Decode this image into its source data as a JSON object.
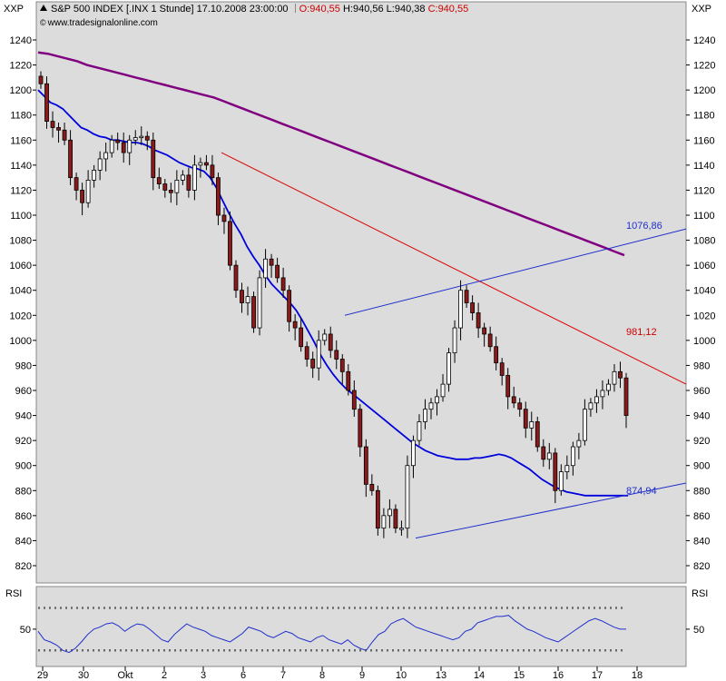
{
  "header": {
    "symbol": "S&P 500 INDEX [.INX  1 Stunde]",
    "datetime": "17.10.2008 23:00:00",
    "ohlc_open": "O:940,55",
    "ohlc_high": "H:940,56",
    "ohlc_low": "L:940,38",
    "ohlc_close": "C:940,55",
    "website": "www.tradesignalonline.com",
    "copyright_symbol": "©"
  },
  "axes": {
    "left_label": "XXP",
    "right_label": "XXP",
    "rsi_label_left": "RSI",
    "rsi_label_right": "RSI"
  },
  "annotations": {
    "upper_channel": "1076,86",
    "trendline": "981,12",
    "lower_channel": "874,94"
  },
  "colors": {
    "plot_bg": "#dcdcdc",
    "up_candle": "#ffffff",
    "down_candle": "#8b1a1a",
    "ma_fast": "#0000dd",
    "ma_slow": "#800080",
    "trendline": "#dd0000",
    "channel": "#1f2fcc",
    "rsi": "#1f2fcc",
    "annotation_blue": "#1f2fcc",
    "annotation_red": "#cc0000"
  },
  "chart_data": [
    {
      "type": "candlestick",
      "title": "S&P 500 INDEX [.INX  1 Stunde]",
      "ylim": [
        810,
        1250
      ],
      "y_ticks": [
        820,
        840,
        860,
        880,
        900,
        920,
        940,
        960,
        980,
        1000,
        1020,
        1040,
        1060,
        1080,
        1100,
        1120,
        1140,
        1160,
        1180,
        1200,
        1220,
        1240
      ],
      "x_ticks": [
        "29",
        "30",
        "Okt",
        "2",
        "3",
        "6",
        "7",
        "8",
        "9",
        "10",
        "13",
        "14",
        "15",
        "16",
        "17",
        "18"
      ],
      "grid": false,
      "close": [
        1205,
        1175,
        1170,
        1168,
        1160,
        1130,
        1120,
        1110,
        1128,
        1136,
        1145,
        1150,
        1160,
        1158,
        1150,
        1160,
        1162,
        1163,
        1160,
        1130,
        1125,
        1120,
        1118,
        1128,
        1132,
        1120,
        1140,
        1142,
        1140,
        1130,
        1100,
        1095,
        1060,
        1040,
        1030,
        1035,
        1010,
        1050,
        1065,
        1060,
        1050,
        1040,
        1015,
        1010,
        995,
        985,
        978,
        1000,
        1005,
        992,
        985,
        975,
        960,
        945,
        915,
        885,
        880,
        850,
        860,
        865,
        850,
        850,
        900,
        920,
        935,
        945,
        950,
        955,
        965,
        990,
        1010,
        1040,
        1030,
        1022,
        1010,
        1005,
        995,
        982,
        972,
        955,
        950,
        945,
        930,
        935,
        915,
        905,
        910,
        880,
        895,
        900,
        915,
        920,
        945,
        950,
        955,
        960,
        965,
        975,
        970,
        940
      ],
      "ma_fast": [
        1200,
        1195,
        1190,
        1188,
        1185,
        1180,
        1175,
        1170,
        1168,
        1165,
        1163,
        1162,
        1160,
        1160,
        1159,
        1158,
        1158,
        1157,
        1155,
        1152,
        1150,
        1148,
        1145,
        1142,
        1140,
        1138,
        1137,
        1135,
        1130,
        1122,
        1112,
        1102,
        1093,
        1085,
        1075,
        1067,
        1060,
        1052,
        1045,
        1040,
        1035,
        1030,
        1024,
        1016,
        1007,
        998,
        988,
        980,
        973,
        967,
        962,
        958,
        954,
        950,
        946,
        942,
        938,
        934,
        930,
        926,
        922,
        918,
        915,
        912,
        910,
        908,
        907,
        906,
        905,
        905,
        905,
        906,
        906,
        907,
        908,
        909,
        908,
        906,
        903,
        900,
        897,
        893,
        889,
        886,
        883,
        881,
        879,
        878,
        877,
        876,
        876,
        876,
        876,
        876,
        876,
        876,
        876
      ],
      "ma_slow": [
        1230,
        1229,
        1227,
        1225,
        1223,
        1220,
        1218,
        1216,
        1214,
        1212,
        1210,
        1208,
        1206,
        1204,
        1202,
        1200,
        1198,
        1196,
        1194,
        1191,
        1188,
        1185,
        1182,
        1179,
        1176,
        1173,
        1170,
        1167,
        1164,
        1161,
        1158,
        1155,
        1152,
        1149,
        1146,
        1143,
        1140,
        1137,
        1134,
        1131,
        1128,
        1125,
        1122,
        1119,
        1116,
        1113,
        1110,
        1107,
        1104,
        1101,
        1098,
        1095,
        1092,
        1089,
        1086,
        1083,
        1080,
        1077,
        1074,
        1071,
        1068
      ],
      "annotations": [
        {
          "label": "1076,86",
          "series": "channel_upper"
        },
        {
          "label": "981,12",
          "series": "trendline"
        },
        {
          "label": "874,94",
          "series": "channel_lower"
        }
      ]
    },
    {
      "type": "line",
      "title": "RSI",
      "y_ticks": [
        50
      ],
      "levels": [
        70,
        30
      ],
      "values": [
        48,
        40,
        38,
        35,
        30,
        28,
        32,
        38,
        45,
        50,
        52,
        55,
        56,
        53,
        48,
        52,
        55,
        54,
        50,
        45,
        40,
        38,
        45,
        50,
        55,
        52,
        50,
        48,
        44,
        42,
        40,
        38,
        42,
        46,
        52,
        50,
        48,
        44,
        42,
        45,
        48,
        46,
        42,
        40,
        38,
        42,
        44,
        40,
        38,
        36,
        40,
        35,
        32,
        30,
        38,
        45,
        48,
        55,
        58,
        60,
        56,
        52,
        50,
        48,
        46,
        44,
        42,
        40,
        42,
        48,
        50,
        56,
        58,
        60,
        62,
        62,
        63,
        58,
        54,
        50,
        48,
        45,
        42,
        40,
        38,
        42,
        46,
        50,
        54,
        58,
        60,
        58,
        55,
        52,
        50,
        50
      ]
    }
  ]
}
